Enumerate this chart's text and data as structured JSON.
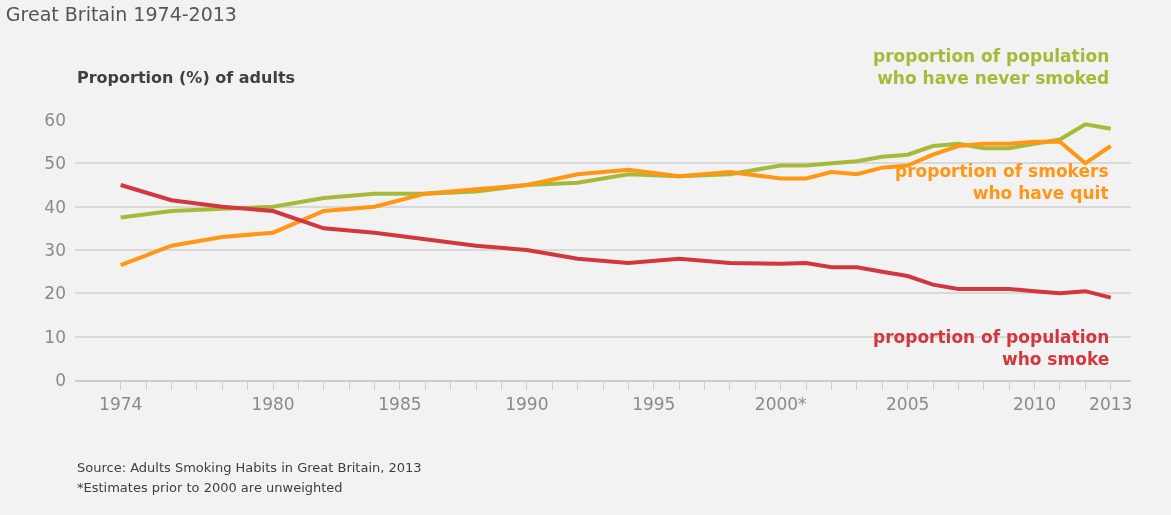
{
  "chart_data": {
    "type": "line",
    "title": "Great Britain 1974-2013",
    "ylabel": "Proportion (%) of adults",
    "x": [
      1974,
      1976,
      1978,
      1980,
      1982,
      1984,
      1986,
      1988,
      1990,
      1992,
      1994,
      1996,
      1998,
      2000,
      2001,
      2002,
      2003,
      2004,
      2005,
      2006,
      2007,
      2008,
      2009,
      2010,
      2011,
      2012,
      2013
    ],
    "series": [
      {
        "name": "proportion of population\nwho have never smoked",
        "color": "#a8b93a",
        "values": [
          37.5,
          39,
          39.5,
          40,
          42,
          43,
          43,
          43.5,
          45,
          45.5,
          47.5,
          47,
          47.5,
          49.5,
          49.5,
          50,
          50.5,
          51.5,
          52,
          54,
          54.5,
          53.5,
          53.5,
          54.5,
          55.5,
          59,
          58
        ]
      },
      {
        "name": "proportion of smokers\nwho have quit",
        "color": "#ff9614",
        "values": [
          26.5,
          31,
          33,
          34,
          39,
          40,
          43,
          44,
          45,
          47.5,
          48.5,
          47,
          48,
          46.5,
          46.5,
          48,
          47.5,
          49,
          49.5,
          52,
          54,
          54.5,
          54.5,
          55,
          55,
          50,
          54
        ]
      },
      {
        "name": "proportion of population\nwho smoke",
        "color": "#d2373e",
        "values": [
          45,
          41.5,
          40,
          39,
          35,
          34,
          32.5,
          31,
          30,
          28,
          27,
          28,
          27,
          26.8,
          27,
          26,
          26,
          25,
          24,
          22,
          21,
          21,
          21,
          20.5,
          20,
          20.5,
          19
        ]
      }
    ],
    "xlim": [
      1972.2,
      2013.8
    ],
    "xticks": [
      1974,
      {
        "value": 1975,
        "label": null
      },
      {
        "value": 1976,
        "label": null
      },
      {
        "value": 1977,
        "label": null
      },
      {
        "value": 1978,
        "label": null
      },
      {
        "value": 1979,
        "label": null
      },
      1980,
      {
        "value": 1981,
        "label": null
      },
      {
        "value": 1982,
        "label": null
      },
      {
        "value": 1983,
        "label": null
      },
      {
        "value": 1984,
        "label": null
      },
      1985,
      {
        "value": 1986,
        "label": null
      },
      {
        "value": 1987,
        "label": null
      },
      {
        "value": 1988,
        "label": null
      },
      {
        "value": 1989,
        "label": null
      },
      1990,
      {
        "value": 1991,
        "label": null
      },
      {
        "value": 1992,
        "label": null
      },
      {
        "value": 1993,
        "label": null
      },
      {
        "value": 1994,
        "label": null
      },
      1995,
      {
        "value": 1996,
        "label": null
      },
      {
        "value": 1997,
        "label": null
      },
      {
        "value": 1998,
        "label": null
      },
      {
        "value": 1999,
        "label": null
      },
      {
        "value": 2000,
        "label": "2000*"
      },
      {
        "value": 2001,
        "label": null
      },
      {
        "value": 2002,
        "label": null
      },
      {
        "value": 2003,
        "label": null
      },
      {
        "value": 2004,
        "label": null
      },
      2005,
      {
        "value": 2006,
        "label": null
      },
      {
        "value": 2007,
        "label": null
      },
      {
        "value": 2008,
        "label": null
      },
      {
        "value": 2009,
        "label": null
      },
      2010,
      {
        "value": 2011,
        "label": null
      },
      {
        "value": 2012,
        "label": null
      },
      2013
    ],
    "ylim": [
      0,
      60
    ],
    "yticks": [
      0,
      10,
      20,
      30,
      40,
      50,
      60
    ],
    "grid": "y",
    "legend": false,
    "marker": "none",
    "line_style": "solid",
    "annotations": [
      "Source: Adults Smoking Habits in Great Britain, 2013",
      "*Estimates prior to 2000 are unweighted"
    ]
  }
}
